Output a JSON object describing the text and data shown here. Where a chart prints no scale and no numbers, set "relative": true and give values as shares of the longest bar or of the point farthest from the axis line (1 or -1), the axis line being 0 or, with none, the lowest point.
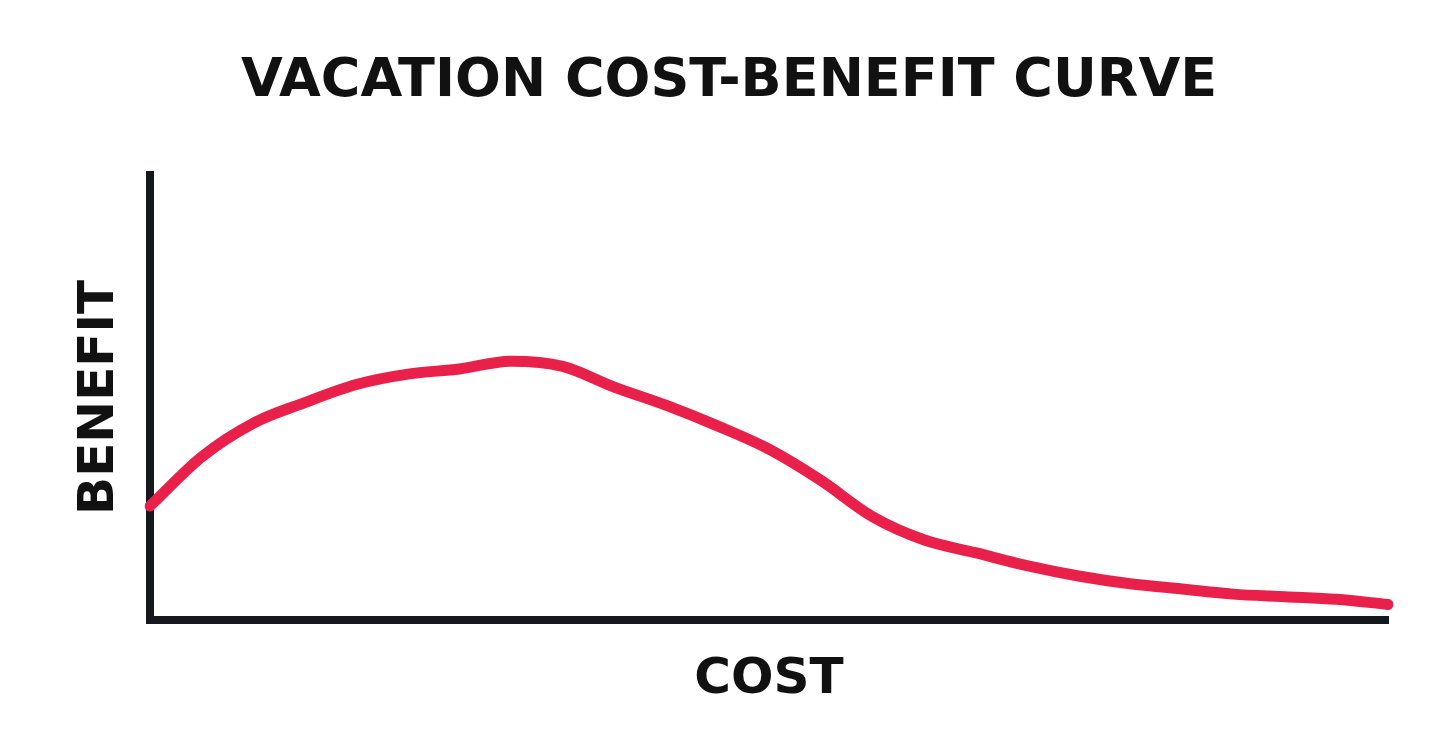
{
  "chart_data": {
    "type": "line",
    "title": "VACATION COST-BENEFIT CURVE",
    "xlabel": "COST",
    "ylabel": "BENEFIT",
    "relative": true,
    "grid": false,
    "legend": false,
    "marker": "none",
    "line_style": "solid",
    "tick_labels": false,
    "categories": [
      null,
      null,
      null,
      null,
      null,
      null,
      null,
      null,
      null,
      null,
      null,
      null,
      null,
      null,
      null,
      null,
      null,
      null,
      null,
      null,
      null,
      null,
      null,
      null,
      null
    ],
    "series": [
      {
        "color": "#e8204a",
        "values": [
          0.44,
          0.63,
          0.76,
          0.84,
          0.91,
          0.95,
          0.97,
          1.0,
          0.98,
          0.9,
          0.83,
          0.75,
          0.66,
          0.54,
          0.4,
          0.31,
          0.26,
          0.21,
          0.17,
          0.14,
          0.12,
          0.1,
          0.09,
          0.08,
          0.06
        ]
      }
    ]
  }
}
